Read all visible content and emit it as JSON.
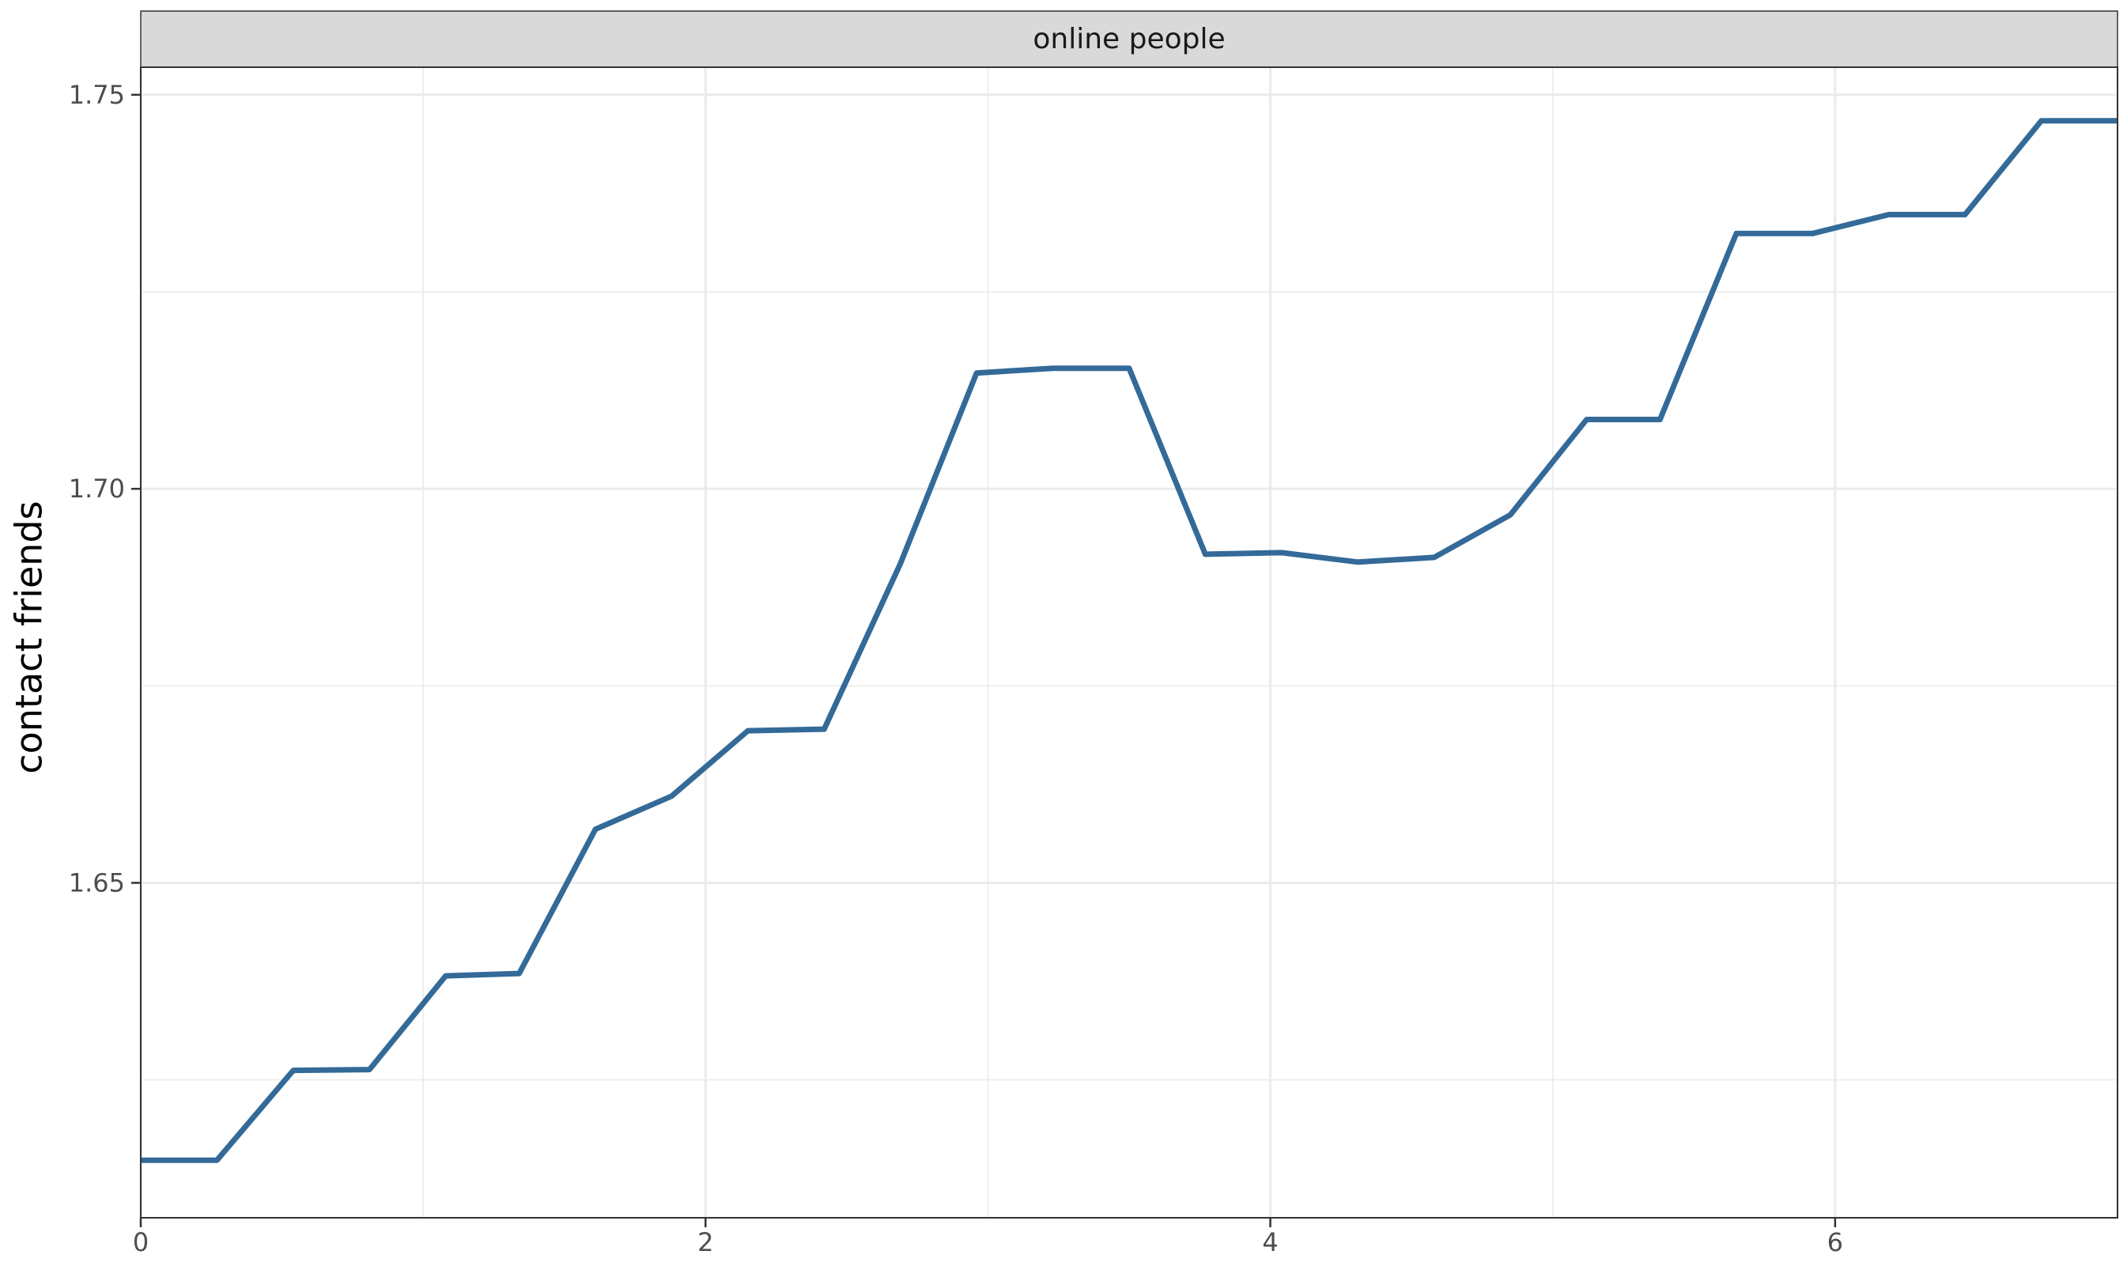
{
  "chart_data": {
    "type": "line",
    "panel_title": "online people",
    "title": "",
    "xlabel": "",
    "ylabel": "contact friends",
    "xlim": [
      0,
      7
    ],
    "ylim": [
      1.6075,
      1.7535
    ],
    "x_ticks": [
      0,
      2,
      4,
      6
    ],
    "x_tick_labels": [
      "0",
      "2",
      "4",
      "6"
    ],
    "y_ticks": [
      1.65,
      1.7,
      1.75
    ],
    "y_tick_labels": [
      "1.65",
      "1.70",
      "1.75"
    ],
    "grid": true,
    "legend": "none",
    "series": [
      {
        "color": "#336a98",
        "x": [
          0,
          0.27,
          0.54,
          0.81,
          1.08,
          1.34,
          1.61,
          1.88,
          2.15,
          2.42,
          2.69,
          2.96,
          3.23,
          3.5,
          3.77,
          4.04,
          4.31,
          4.58,
          4.85,
          5.12,
          5.38,
          5.65,
          5.92,
          6.19,
          6.46,
          6.73,
          7.0
        ],
        "y": [
          1.6148,
          1.6148,
          1.6262,
          1.6263,
          1.6382,
          1.6385,
          1.6568,
          1.661,
          1.6693,
          1.6695,
          1.6905,
          1.7147,
          1.7153,
          1.7153,
          1.6917,
          1.6919,
          1.6907,
          1.6913,
          1.6967,
          1.7088,
          1.7088,
          1.7324,
          1.7324,
          1.7348,
          1.7348,
          1.7467,
          1.7467
        ]
      }
    ]
  }
}
